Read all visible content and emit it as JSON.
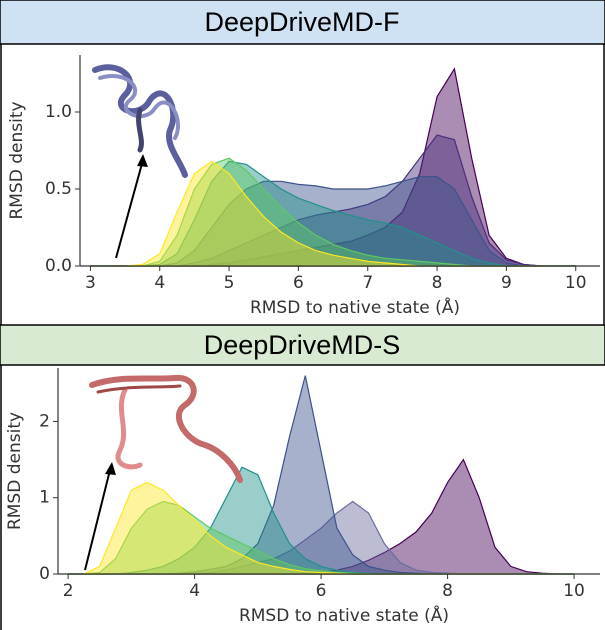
{
  "chart_data": [
    {
      "type": "area",
      "title": "DeepDriveMD-F",
      "x_label": "RMSD to native state (Å)",
      "y_label": "RMSD density",
      "xlim": [
        2.85,
        10.35
      ],
      "ylim": [
        0,
        1.37
      ],
      "xticks": [
        3,
        4,
        5,
        6,
        7,
        8,
        9,
        10
      ],
      "yticks": [
        {
          "value": 0,
          "label": "0.0"
        },
        0.5,
        {
          "value": 1,
          "label": "1.0"
        }
      ],
      "x": [
        3,
        3.25,
        3.5,
        3.75,
        4,
        4.25,
        4.5,
        4.75,
        5,
        5.25,
        5.5,
        5.75,
        6,
        6.25,
        6.5,
        6.75,
        7,
        7.25,
        7.5,
        7.75,
        8,
        8.25,
        8.5,
        8.75,
        9,
        9.25,
        9.5,
        9.75,
        10
      ],
      "series": [
        {
          "color": "#fde725",
          "values": [
            0,
            0,
            0,
            0.01,
            0.08,
            0.35,
            0.6,
            0.68,
            0.6,
            0.45,
            0.32,
            0.22,
            0.15,
            0.1,
            0.07,
            0.05,
            0.03,
            0.02,
            0.01,
            0,
            0,
            0,
            0,
            0,
            0,
            0,
            0,
            0,
            0
          ]
        },
        {
          "color": "#5ec962",
          "values": [
            0,
            0,
            0,
            0,
            0.03,
            0.2,
            0.5,
            0.66,
            0.7,
            0.62,
            0.5,
            0.38,
            0.28,
            0.2,
            0.14,
            0.1,
            0.07,
            0.05,
            0.04,
            0.03,
            0.02,
            0.01,
            0,
            0,
            0,
            0,
            0,
            0,
            0
          ]
        },
        {
          "color": "#21918c",
          "values": [
            0,
            0,
            0,
            0,
            0.01,
            0.08,
            0.3,
            0.55,
            0.68,
            0.66,
            0.58,
            0.5,
            0.44,
            0.4,
            0.36,
            0.33,
            0.3,
            0.28,
            0.25,
            0.2,
            0.15,
            0.1,
            0.05,
            0.02,
            0,
            0,
            0,
            0,
            0
          ]
        },
        {
          "color": "#3b528b",
          "values": [
            0,
            0,
            0,
            0,
            0,
            0.02,
            0.1,
            0.25,
            0.4,
            0.5,
            0.55,
            0.55,
            0.53,
            0.52,
            0.5,
            0.5,
            0.5,
            0.52,
            0.55,
            0.58,
            0.58,
            0.5,
            0.3,
            0.1,
            0.02,
            0,
            0,
            0,
            0
          ]
        },
        {
          "color": "#472d7b",
          "values": [
            0,
            0,
            0,
            0,
            0,
            0,
            0.02,
            0.05,
            0.1,
            0.15,
            0.2,
            0.25,
            0.3,
            0.33,
            0.35,
            0.37,
            0.4,
            0.45,
            0.55,
            0.7,
            0.85,
            0.82,
            0.45,
            0.15,
            0.04,
            0.01,
            0,
            0,
            0
          ]
        },
        {
          "color": "#440154",
          "values": [
            0,
            0,
            0,
            0,
            0,
            0,
            0,
            0.01,
            0.02,
            0.04,
            0.06,
            0.08,
            0.1,
            0.12,
            0.14,
            0.16,
            0.2,
            0.25,
            0.35,
            0.6,
            1.1,
            1.28,
            0.7,
            0.2,
            0.05,
            0.01,
            0,
            0,
            0
          ]
        }
      ]
    },
    {
      "type": "area",
      "title": "DeepDriveMD-S",
      "x_label": "RMSD to native state (Å)",
      "y_label": "RMSD density",
      "xlim": [
        1.84,
        10.41
      ],
      "ylim": [
        0,
        2.7
      ],
      "xticks": [
        2,
        4,
        6,
        8,
        10
      ],
      "yticks": [
        0,
        1,
        2
      ],
      "x": [
        2,
        2.25,
        2.5,
        2.75,
        3,
        3.25,
        3.5,
        3.75,
        4,
        4.25,
        4.5,
        4.75,
        5,
        5.25,
        5.5,
        5.75,
        6,
        6.25,
        6.5,
        6.75,
        7,
        7.25,
        7.5,
        7.75,
        8,
        8.25,
        8.5,
        8.75,
        9,
        9.25,
        9.5,
        9.75,
        10
      ],
      "series": [
        {
          "color": "#fde725",
          "values": [
            0,
            0,
            0.1,
            0.6,
            1.1,
            1.2,
            1.1,
            0.9,
            0.7,
            0.5,
            0.35,
            0.25,
            0.15,
            0.1,
            0.06,
            0.03,
            0.02,
            0.01,
            0,
            0,
            0,
            0,
            0,
            0,
            0,
            0,
            0,
            0,
            0,
            0,
            0,
            0,
            0
          ]
        },
        {
          "color": "#5ec962",
          "values": [
            0,
            0,
            0.02,
            0.2,
            0.6,
            0.85,
            0.95,
            0.9,
            0.75,
            0.6,
            0.5,
            0.4,
            0.3,
            0.2,
            0.12,
            0.07,
            0.04,
            0.02,
            0.01,
            0,
            0,
            0,
            0,
            0,
            0,
            0,
            0,
            0,
            0,
            0,
            0,
            0,
            0
          ]
        },
        {
          "color": "#21918c",
          "values": [
            0,
            0,
            0,
            0,
            0.02,
            0.05,
            0.1,
            0.2,
            0.35,
            0.6,
            1.0,
            1.4,
            1.3,
            0.8,
            0.4,
            0.2,
            0.1,
            0.05,
            0.02,
            0.01,
            0,
            0,
            0,
            0,
            0,
            0,
            0,
            0,
            0,
            0,
            0,
            0,
            0
          ]
        },
        {
          "color": "#3b528b",
          "values": [
            0,
            0,
            0,
            0,
            0,
            0,
            0,
            0.01,
            0.03,
            0.06,
            0.1,
            0.2,
            0.4,
            0.9,
            1.8,
            2.6,
            1.6,
            0.6,
            0.25,
            0.1,
            0.05,
            0.02,
            0.01,
            0,
            0,
            0,
            0,
            0,
            0,
            0,
            0,
            0,
            0
          ]
        },
        {
          "color": "#6a6d9e",
          "values": [
            0,
            0,
            0,
            0,
            0,
            0,
            0,
            0,
            0.01,
            0.02,
            0.05,
            0.1,
            0.15,
            0.2,
            0.3,
            0.45,
            0.6,
            0.8,
            0.95,
            0.8,
            0.4,
            0.15,
            0.05,
            0.02,
            0.01,
            0,
            0,
            0,
            0,
            0,
            0,
            0,
            0
          ]
        },
        {
          "color": "#440154",
          "values": [
            0,
            0,
            0,
            0,
            0,
            0,
            0,
            0,
            0,
            0,
            0,
            0,
            0,
            0,
            0,
            0,
            0.02,
            0.05,
            0.1,
            0.18,
            0.28,
            0.4,
            0.55,
            0.8,
            1.2,
            1.5,
            1.0,
            0.35,
            0.1,
            0.03,
            0.01,
            0,
            0
          ]
        }
      ]
    }
  ]
}
